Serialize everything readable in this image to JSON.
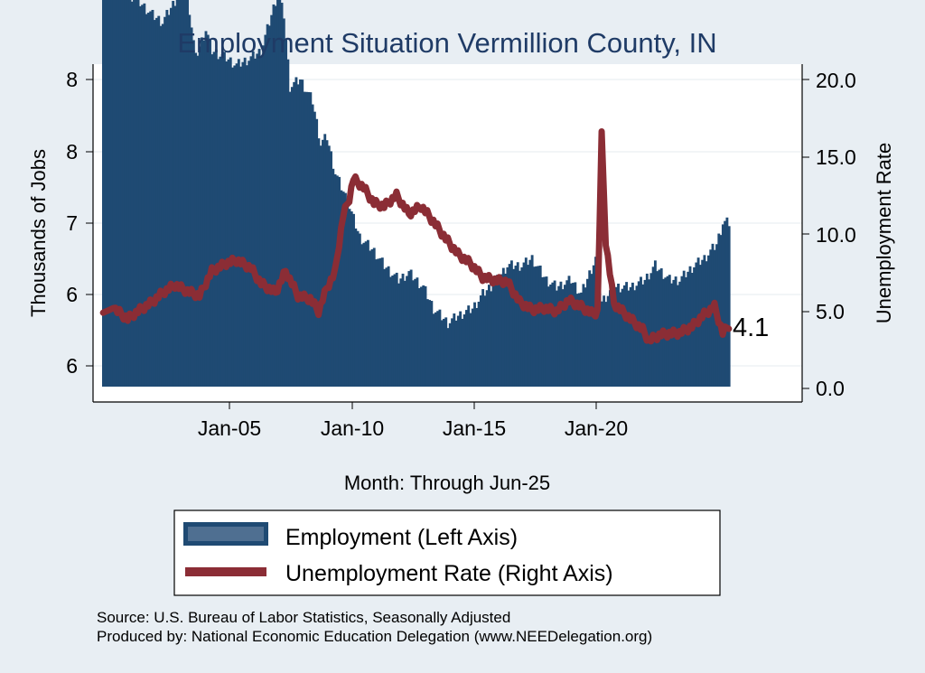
{
  "chart_data": {
    "type": "bar+line",
    "title": "Employment Situation Vermillion  County, IN",
    "xlabel": "Month: Through Jun-25",
    "ylabel_left": "Thousands of Jobs",
    "ylabel_right": "Unemployment Rate",
    "x_tick_labels": [
      "Jan-05",
      "Jan-10",
      "Jan-15",
      "Jan-20"
    ],
    "y_left_tick_labels": [
      "6",
      "6",
      "7",
      "8",
      "8"
    ],
    "y_right_tick_labels": [
      "0.0",
      "5.0",
      "10.0",
      "15.0",
      "20.0"
    ],
    "y_right_range": [
      0,
      20
    ],
    "end_label": "4.1",
    "grid": true,
    "legend_position": "bottom",
    "colors": {
      "employment": "#1f4a73",
      "unemployment": "#8b2d35",
      "background": "#e8eef3",
      "plot_background": "#ffffff",
      "title": "#1f3b66"
    },
    "employment_series": {
      "name": "Employment (Left Axis)",
      "anchors": [
        [
          "2000-01",
          8.6
        ],
        [
          "2000-06",
          8.7
        ],
        [
          "2001-01",
          8.6
        ],
        [
          "2001-06",
          8.55
        ],
        [
          "2002-01",
          8.45
        ],
        [
          "2002-06",
          8.4
        ],
        [
          "2002-12",
          8.55
        ],
        [
          "2003-03",
          8.7
        ],
        [
          "2003-06",
          8.6
        ],
        [
          "2003-10",
          8.15
        ],
        [
          "2004-03",
          8.35
        ],
        [
          "2004-06",
          8.2
        ],
        [
          "2005-01",
          8.15
        ],
        [
          "2005-06",
          8.1
        ],
        [
          "2006-01",
          8.15
        ],
        [
          "2006-06",
          8.2
        ],
        [
          "2007-02",
          8.6
        ],
        [
          "2007-05",
          8.45
        ],
        [
          "2007-08",
          7.95
        ],
        [
          "2008-01",
          8.0
        ],
        [
          "2008-07",
          7.85
        ],
        [
          "2008-11",
          7.55
        ],
        [
          "2009-02",
          7.6
        ],
        [
          "2009-06",
          7.35
        ],
        [
          "2009-12",
          7.15
        ],
        [
          "2010-06",
          6.9
        ],
        [
          "2011-01",
          6.8
        ],
        [
          "2011-06",
          6.7
        ],
        [
          "2012-01",
          6.6
        ],
        [
          "2012-06",
          6.65
        ],
        [
          "2013-01",
          6.55
        ],
        [
          "2013-06",
          6.4
        ],
        [
          "2014-01",
          6.3
        ],
        [
          "2014-06",
          6.35
        ],
        [
          "2015-01",
          6.4
        ],
        [
          "2015-06",
          6.5
        ],
        [
          "2016-01",
          6.6
        ],
        [
          "2016-06",
          6.7
        ],
        [
          "2017-01",
          6.7
        ],
        [
          "2017-06",
          6.75
        ],
        [
          "2018-01",
          6.6
        ],
        [
          "2018-06",
          6.55
        ],
        [
          "2019-01",
          6.6
        ],
        [
          "2019-06",
          6.5
        ],
        [
          "2020-01",
          6.75
        ],
        [
          "2020-03",
          6.85
        ],
        [
          "2020-04",
          6.45
        ],
        [
          "2020-10",
          6.55
        ],
        [
          "2021-06",
          6.55
        ],
        [
          "2022-01",
          6.6
        ],
        [
          "2022-06",
          6.7
        ],
        [
          "2023-01",
          6.6
        ],
        [
          "2023-06",
          6.6
        ],
        [
          "2024-01",
          6.7
        ],
        [
          "2024-06",
          6.75
        ],
        [
          "2024-12",
          6.85
        ],
        [
          "2025-03",
          7.0
        ],
        [
          "2025-06",
          7.0
        ]
      ]
    },
    "unemployment_series": {
      "name": "Unemployment Rate (Right Axis)",
      "anchors": [
        [
          "2000-01",
          4.9
        ],
        [
          "2000-06",
          5.2
        ],
        [
          "2001-01",
          4.5
        ],
        [
          "2001-06",
          5.0
        ],
        [
          "2002-01",
          5.6
        ],
        [
          "2002-06",
          6.2
        ],
        [
          "2002-12",
          6.7
        ],
        [
          "2003-06",
          6.3
        ],
        [
          "2003-12",
          6.0
        ],
        [
          "2004-06",
          7.6
        ],
        [
          "2005-01",
          8.1
        ],
        [
          "2005-06",
          8.3
        ],
        [
          "2006-01",
          7.8
        ],
        [
          "2006-06",
          6.8
        ],
        [
          "2007-01",
          6.2
        ],
        [
          "2007-06",
          7.6
        ],
        [
          "2007-12",
          6.0
        ],
        [
          "2008-06",
          5.8
        ],
        [
          "2008-10",
          5.0
        ],
        [
          "2009-02",
          6.5
        ],
        [
          "2009-06",
          7.5
        ],
        [
          "2009-10",
          11.2
        ],
        [
          "2010-01",
          12.3
        ],
        [
          "2010-03",
          13.6
        ],
        [
          "2010-08",
          13.0
        ],
        [
          "2011-01",
          12.0
        ],
        [
          "2011-06",
          11.8
        ],
        [
          "2011-12",
          12.5
        ],
        [
          "2012-06",
          11.3
        ],
        [
          "2012-12",
          11.8
        ],
        [
          "2013-06",
          10.8
        ],
        [
          "2013-12",
          9.7
        ],
        [
          "2014-06",
          8.7
        ],
        [
          "2014-12",
          8.1
        ],
        [
          "2015-06",
          7.2
        ],
        [
          "2015-12",
          7.0
        ],
        [
          "2016-06",
          6.9
        ],
        [
          "2016-12",
          5.6
        ],
        [
          "2017-06",
          5.1
        ],
        [
          "2017-12",
          5.2
        ],
        [
          "2018-06",
          5.0
        ],
        [
          "2018-12",
          5.7
        ],
        [
          "2019-06",
          5.3
        ],
        [
          "2019-12",
          4.8
        ],
        [
          "2020-02",
          5.0
        ],
        [
          "2020-04",
          16.4
        ],
        [
          "2020-06",
          9.5
        ],
        [
          "2020-10",
          5.5
        ],
        [
          "2021-06",
          4.5
        ],
        [
          "2021-12",
          3.8
        ],
        [
          "2022-03",
          3.1
        ],
        [
          "2022-09",
          3.5
        ],
        [
          "2023-06",
          3.6
        ],
        [
          "2023-12",
          4.0
        ],
        [
          "2024-06",
          4.8
        ],
        [
          "2024-11",
          5.3
        ],
        [
          "2025-03",
          3.6
        ],
        [
          "2025-06",
          4.1
        ]
      ]
    }
  },
  "legend": {
    "employment_label": "Employment (Left Axis)",
    "unemployment_label": "Unemployment Rate (Right Axis)"
  },
  "footer": {
    "source": "Source: U.S. Bureau of Labor Statistics, Seasonally Adjusted",
    "produced_by": "Produced by: National Economic Education Delegation (www.NEEDelegation.org)"
  }
}
